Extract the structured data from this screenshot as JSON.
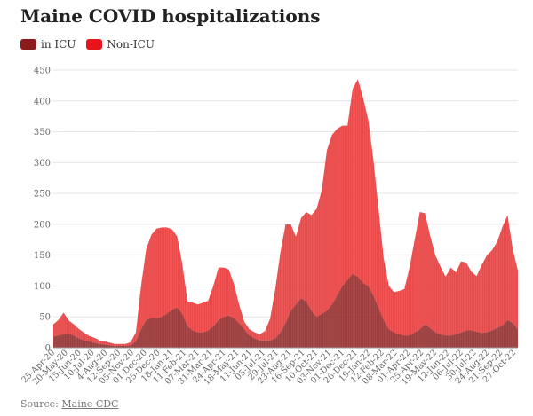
{
  "chart_data": {
    "type": "area",
    "stacked": true,
    "title": "Maine COVID hospitalizations",
    "source_label": "Source:",
    "source_name": "Maine CDC",
    "ylim": [
      0,
      450
    ],
    "yticks": [
      0,
      50,
      100,
      150,
      200,
      250,
      300,
      350,
      400,
      450
    ],
    "grid": true,
    "legend_position": "top-left",
    "x_tick_labels": [
      "25-Apr-20",
      "20-May-20",
      "15-Jun-20",
      "10-Jul-20",
      "4-Aug-20",
      "12-Sep-20",
      "05-Nov-20",
      "01-Dec-20",
      "25-Dec-20",
      "18-Jan-21",
      "11-Feb-21",
      "07-Mar-21",
      "31-Mar-21",
      "24-Apr-21",
      "18-May-21",
      "11-Jun-21",
      "05-Jul-21",
      "29-Jul-21",
      "23-Aug-21",
      "16-Sep-21",
      "10-Oct-21",
      "03-Nov-21",
      "01-Dec-21",
      "26-Dec-21",
      "19-Jan-22",
      "12-Feb-22",
      "08-Mar-22",
      "01-Apr-22",
      "25-Apr-22",
      "19-May-22",
      "12-Jun-22",
      "06-Jul-22",
      "30-Jul-22",
      "24-Aug-22",
      "21-Sep-22",
      "27-Oct-22"
    ],
    "series": [
      {
        "name": "in ICU",
        "color": "#8b1a1a",
        "values": [
          18,
          20,
          22,
          22,
          20,
          15,
          12,
          10,
          8,
          6,
          5,
          4,
          3,
          3,
          3,
          4,
          10,
          30,
          45,
          48,
          48,
          50,
          55,
          62,
          65,
          55,
          35,
          28,
          25,
          25,
          28,
          35,
          45,
          50,
          52,
          48,
          40,
          30,
          20,
          15,
          12,
          12,
          12,
          15,
          25,
          40,
          60,
          70,
          80,
          75,
          60,
          50,
          55,
          60,
          70,
          85,
          100,
          110,
          120,
          115,
          105,
          100,
          85,
          65,
          45,
          30,
          25,
          22,
          20,
          20,
          25,
          30,
          38,
          32,
          25,
          22,
          20,
          20,
          22,
          25,
          28,
          28,
          26,
          24,
          25,
          28,
          32,
          36,
          45,
          40,
          30
        ]
      },
      {
        "name": "Non-ICU",
        "color": "#e83a3a",
        "values": [
          20,
          25,
          35,
          22,
          18,
          15,
          12,
          9,
          8,
          6,
          5,
          4,
          3,
          3,
          3,
          5,
          15,
          70,
          115,
          135,
          145,
          145,
          140,
          130,
          115,
          80,
          40,
          45,
          45,
          48,
          48,
          65,
          85,
          80,
          75,
          55,
          30,
          12,
          10,
          10,
          10,
          15,
          35,
          80,
          130,
          160,
          140,
          110,
          130,
          145,
          155,
          175,
          200,
          260,
          275,
          270,
          260,
          250,
          300,
          320,
          300,
          270,
          220,
          160,
          100,
          70,
          65,
          70,
          75,
          110,
          150,
          190,
          180,
          150,
          125,
          110,
          95,
          110,
          100,
          115,
          110,
          95,
          90,
          110,
          125,
          130,
          140,
          160,
          170,
          120,
          95
        ]
      }
    ]
  },
  "legend": {
    "icu_label": "in ICU",
    "non_icu_label": "Non-ICU"
  }
}
